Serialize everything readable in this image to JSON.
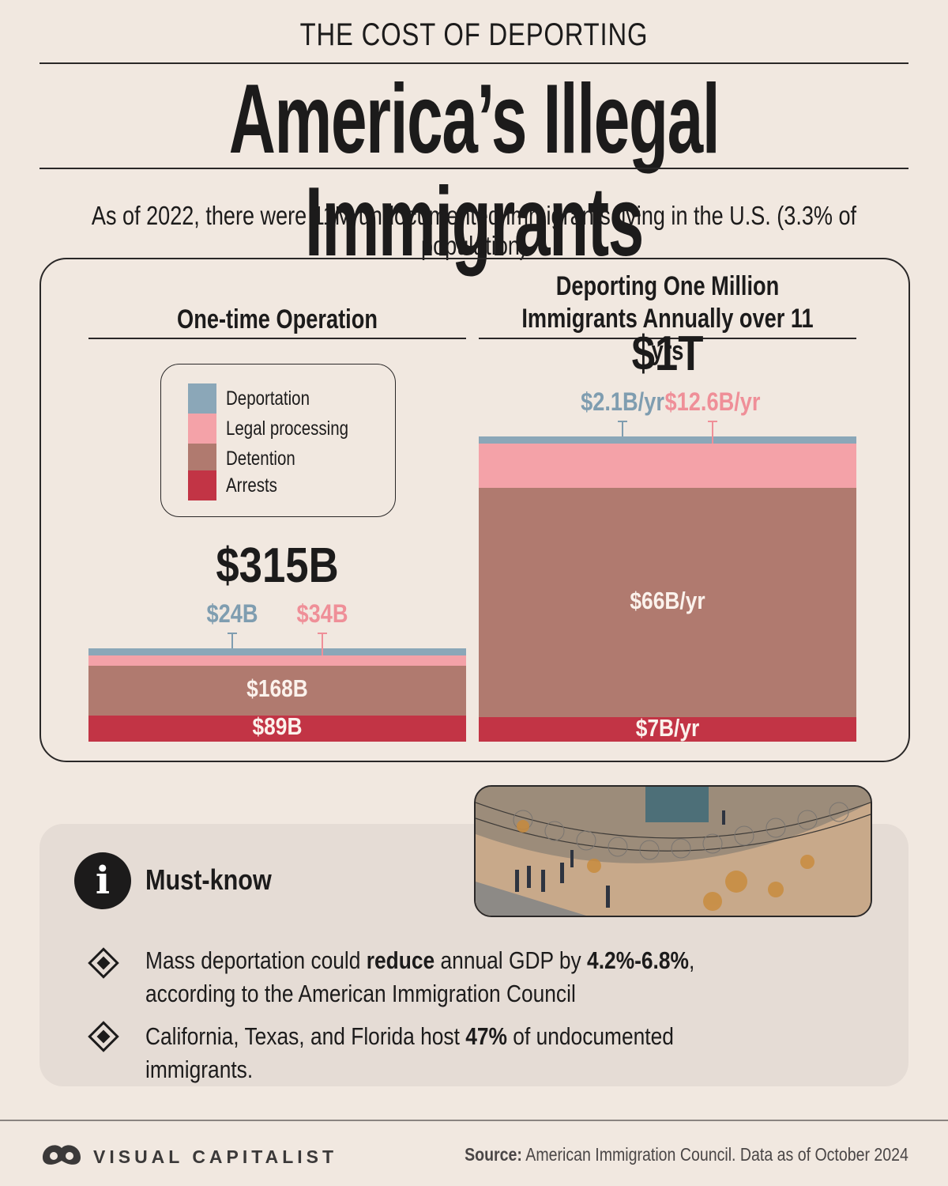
{
  "header": {
    "kicker": "THE COST OF DEPORTING",
    "title": "America’s Illegal Immigrants",
    "subtitle": "As of 2022, there were 11M undocumented immigrants living in the U.S. (3.3% of population)"
  },
  "legend": {
    "items": [
      {
        "label": "Deportation",
        "color": "#8ba7b8"
      },
      {
        "label": "Legal processing",
        "color": "#f4a2a8"
      },
      {
        "label": "Detention",
        "color": "#b07a6f"
      },
      {
        "label": "Arrests",
        "color": "#c23445"
      }
    ]
  },
  "chart_data": [
    {
      "type": "bar",
      "title": "One-time Operation",
      "total_label": "$315B",
      "units": "USD billions",
      "stack": [
        {
          "name": "Arrests",
          "value": 89,
          "label": "$89B"
        },
        {
          "name": "Detention",
          "value": 168,
          "label": "$168B"
        },
        {
          "name": "Legal processing",
          "value": 34,
          "label": "$34B"
        },
        {
          "name": "Deportation",
          "value": 24,
          "label": "$24B"
        }
      ]
    },
    {
      "type": "bar",
      "title": "Deporting One Million Immigrants Annually over 11 yrs",
      "total_label": "$1T",
      "units": "USD billions per year",
      "stack": [
        {
          "name": "Arrests",
          "value": 7,
          "label": "$7B/yr"
        },
        {
          "name": "Detention",
          "value": 66,
          "label": "$66B/yr"
        },
        {
          "name": "Legal processing",
          "value": 12.6,
          "label": "$12.6B/yr"
        },
        {
          "name": "Deportation",
          "value": 2.1,
          "label": "$2.1B/yr"
        }
      ]
    }
  ],
  "mustknow": {
    "title": "Must-know",
    "info_icon": "i",
    "bullets": [
      {
        "pre": "Mass deportation could ",
        "b1": "reduce",
        "mid": " annual GDP by ",
        "b2": "4.2%-6.8%",
        "post": ", according to the American Immigration Council"
      },
      {
        "pre": "California, Texas, and Florida host ",
        "b1": "47%",
        "mid": " of undocumented immigrants.",
        "b2": "",
        "post": ""
      }
    ]
  },
  "footer": {
    "brand": "VISUAL CAPITALIST",
    "source_label": "Source:",
    "source_text": " American Immigration Council. Data as of October 2024"
  }
}
